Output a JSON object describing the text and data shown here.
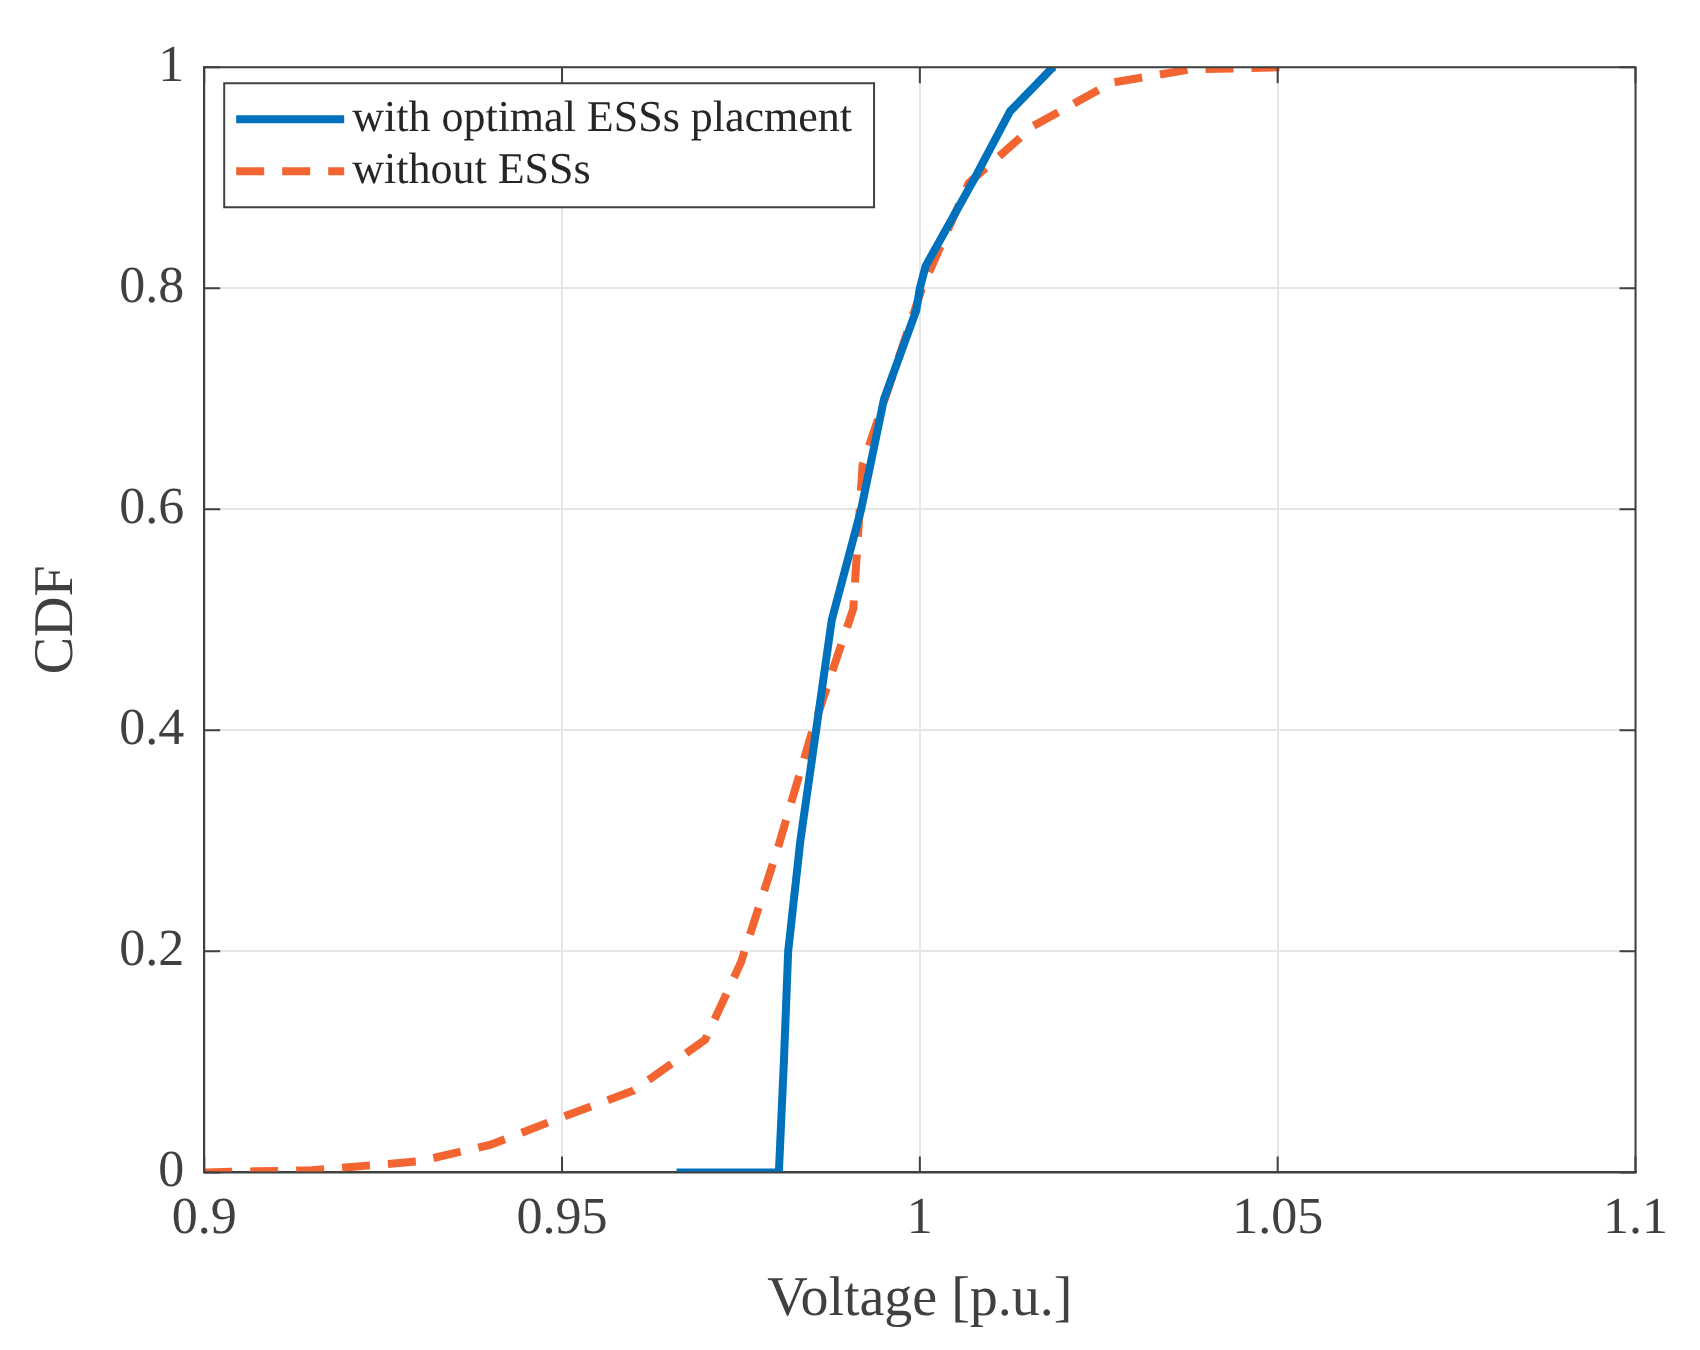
{
  "chart_data": {
    "type": "line",
    "xlabel": "Voltage [p.u.]",
    "ylabel": "CDF",
    "xlim": [
      0.9,
      1.1
    ],
    "ylim": [
      0,
      1
    ],
    "xticks": [
      0.9,
      0.95,
      1,
      1.05,
      1.1
    ],
    "yticks": [
      0,
      0.2,
      0.4,
      0.6,
      0.8,
      1
    ],
    "grid": true,
    "legend": "top left",
    "marker": "none",
    "series": [
      {
        "name": "with optimal ESSs placment",
        "color": "#0072bd",
        "line_style": "solid",
        "x": [
          0.966,
          0.9803,
          0.981,
          0.9816,
          0.9833,
          0.9855,
          0.9877,
          0.9918,
          0.995,
          0.9995,
          1.0,
          1.0008,
          1.0077,
          1.0126,
          1.0186,
          1.019
        ],
        "values": [
          0,
          0,
          0.1,
          0.2,
          0.3,
          0.4,
          0.5,
          0.6,
          0.7,
          0.78,
          0.8,
          0.82,
          0.9,
          0.96,
          1.0,
          1.0
        ]
      },
      {
        "name": "without ESSs",
        "color": "#f26430",
        "line_style": "dashed",
        "x": [
          0.9,
          0.915,
          0.93,
          0.94,
          0.95,
          0.96,
          0.97,
          0.975,
          0.98,
          0.985,
          0.9907,
          0.992,
          0.9986,
          1.0003,
          1.0068,
          1.0159,
          1.0268,
          1.0378,
          1.0507
        ],
        "values": [
          0,
          0.002,
          0.01,
          0.025,
          0.05,
          0.074,
          0.12,
          0.19,
          0.29,
          0.4,
          0.51,
          0.64,
          0.767,
          0.8,
          0.895,
          0.947,
          0.986,
          0.998,
          1.0
        ]
      }
    ]
  }
}
